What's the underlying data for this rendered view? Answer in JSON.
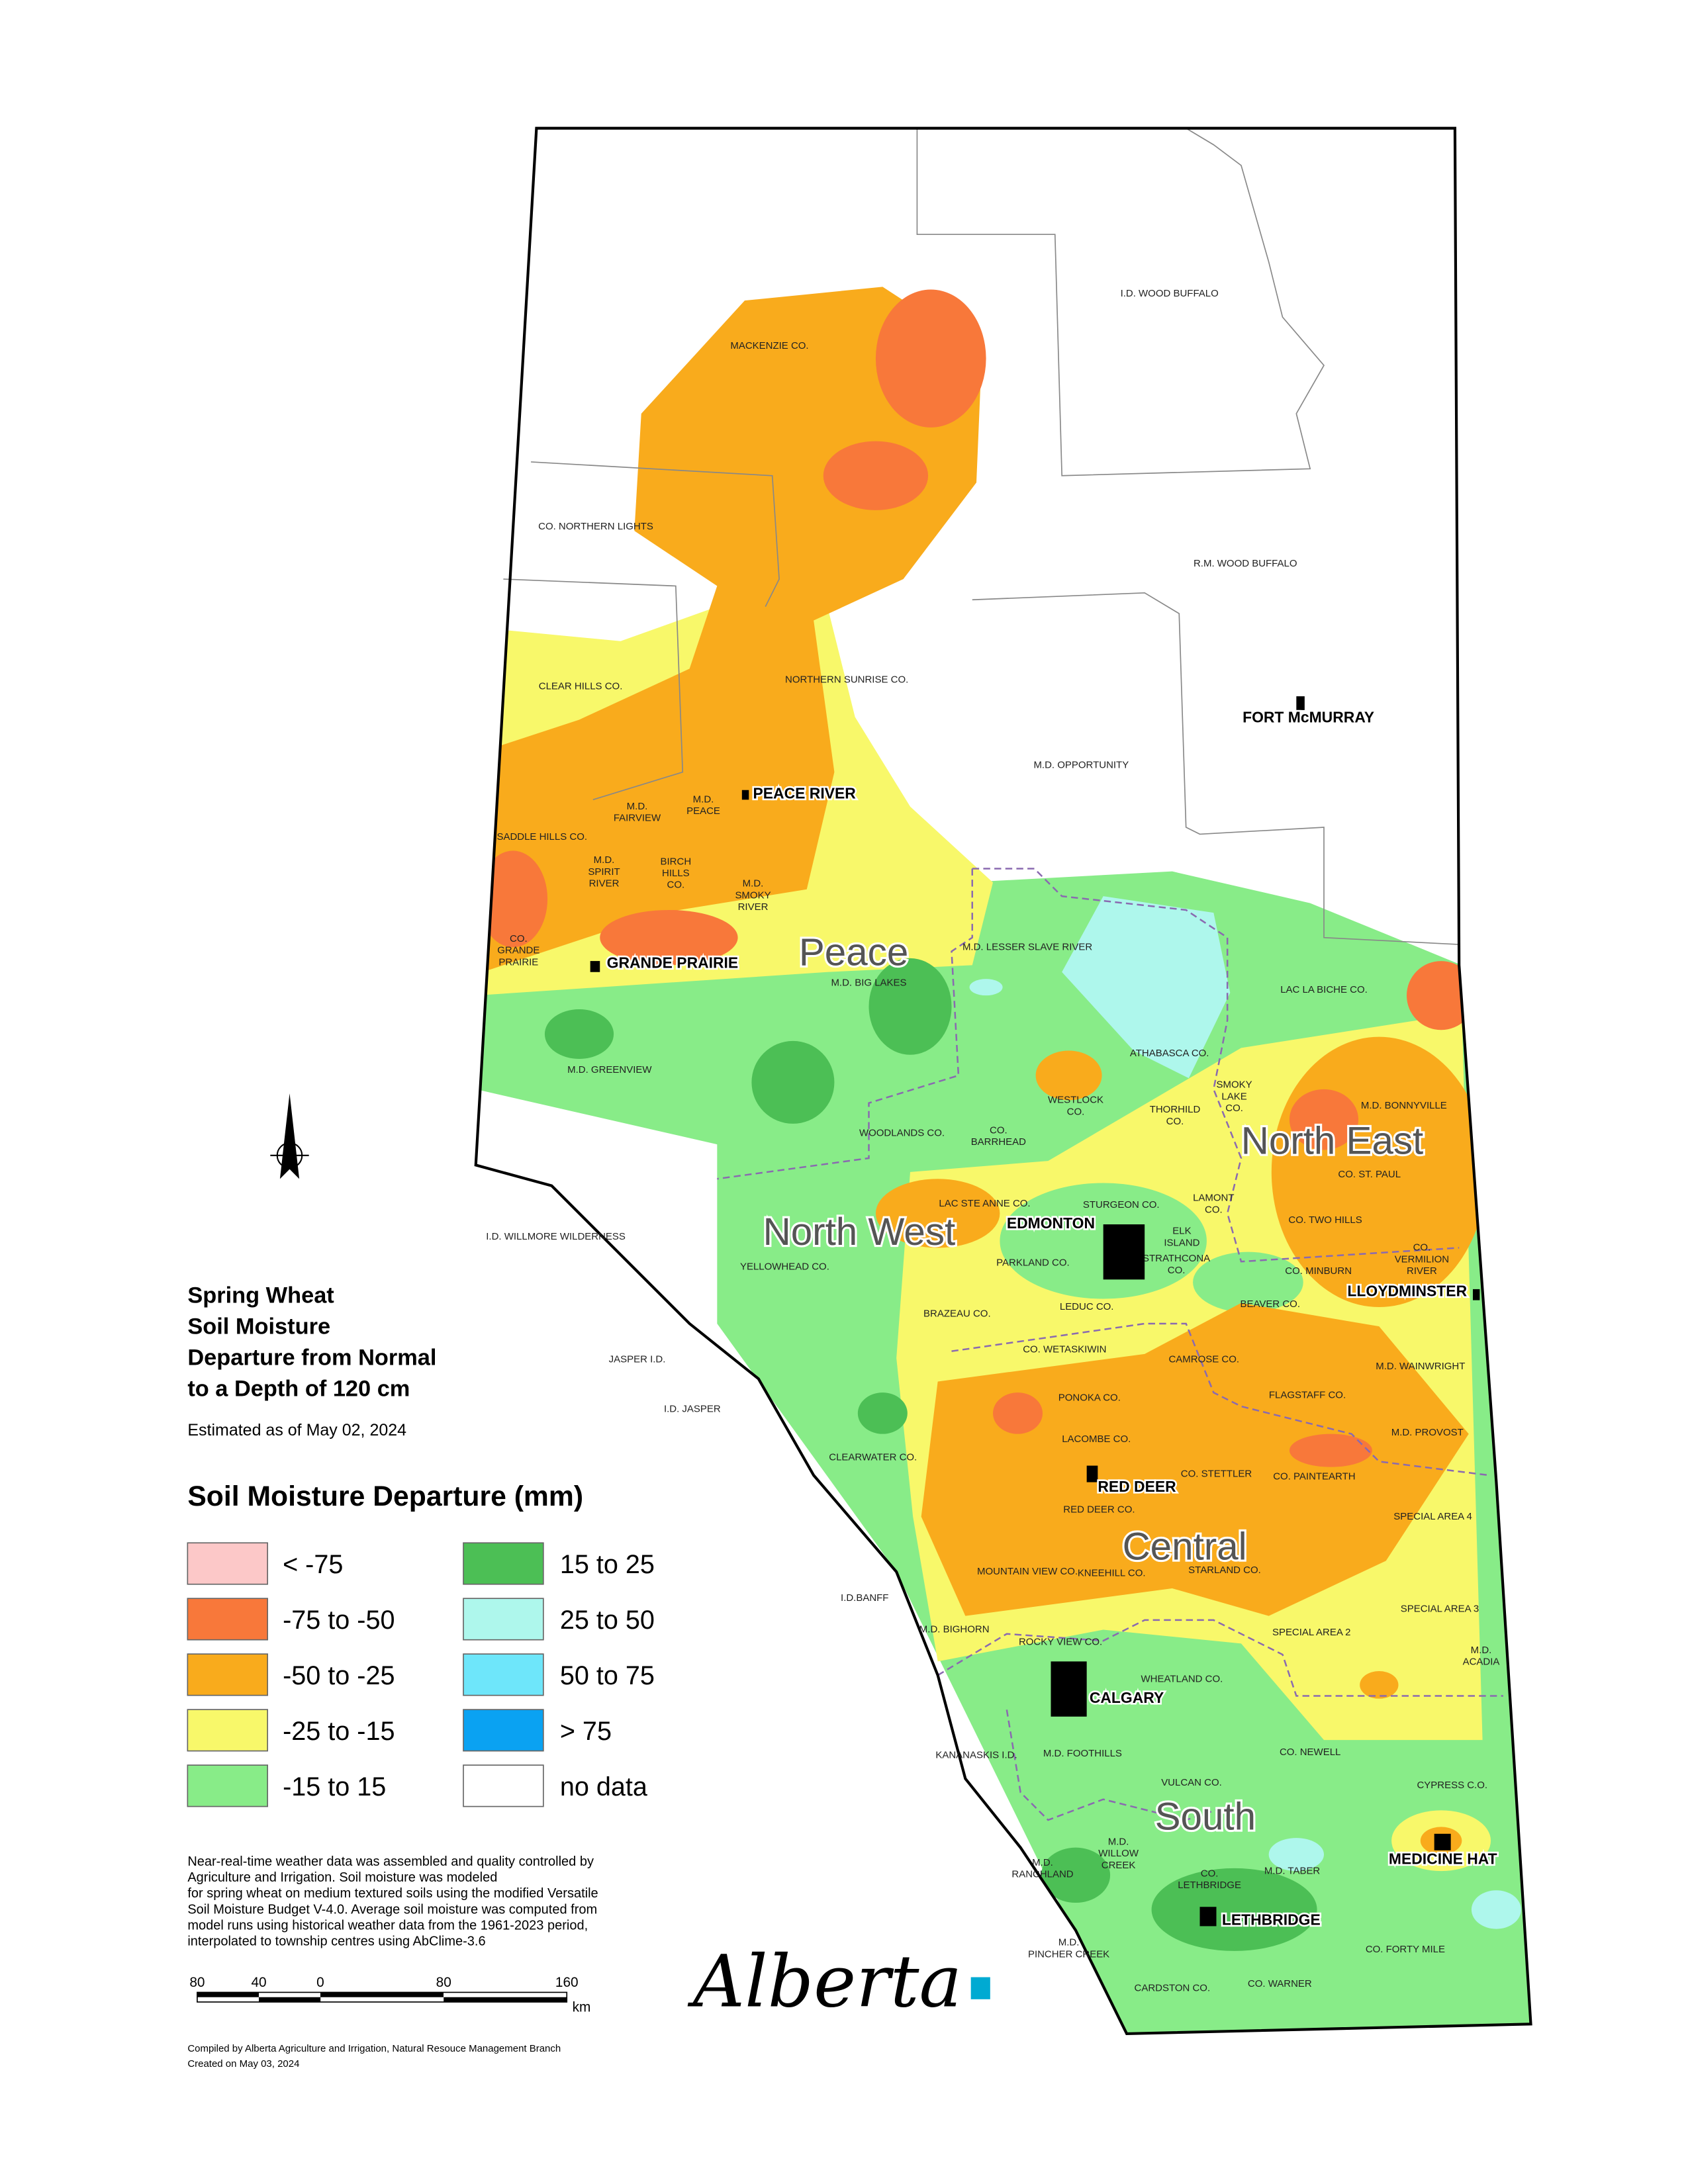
{
  "title": [
    "Spring Wheat",
    "Soil Moisture",
    "Departure from Normal",
    "to a Depth of 120 cm"
  ],
  "estimated": "Estimated as of May 02, 2024",
  "legend": {
    "title": "Soil Moisture Departure (mm)",
    "items": [
      {
        "label": "< -75",
        "color": "#fcc8c8"
      },
      {
        "label": "-75 to -50",
        "color": "#f8783a"
      },
      {
        "label": "-50 to -25",
        "color": "#f9ab1c"
      },
      {
        "label": "-25 to -15",
        "color": "#f8f86a"
      },
      {
        "label": "-15 to 15",
        "color": "#88ec88"
      },
      {
        "label": "15 to 25",
        "color": "#4cbf55"
      },
      {
        "label": "25 to 50",
        "color": "#aef7ec"
      },
      {
        "label": "50 to 75",
        "color": "#6ee6fa"
      },
      {
        "label": "> 75",
        "color": "#0aa2f2"
      },
      {
        "label": "no data",
        "color": "#ffffff"
      }
    ]
  },
  "notes": [
    "Near-real-time weather data was assembled and quality controlled by",
    "Agriculture and Irrigation.  Soil moisture was modeled",
    "for spring wheat on medium textured soils using the modified Versatile",
    "Soil Moisture Budget V-4.0.  Average soil moisture was computed from",
    "model runs using historical weather data from the 1961-2023 period,",
    "interpolated to township centres using AbClime-3.6"
  ],
  "scale_bar": {
    "ticks": [
      "80",
      "40",
      "0",
      "80",
      "160"
    ],
    "unit": "km"
  },
  "credits": [
    "Compiled by Alberta Agriculture and Irrigation, Natural Resouce Management Branch",
    "Created on May 03, 2024"
  ],
  "logo": "Alberta",
  "north_arrow": "N",
  "regions": [
    "Peace",
    "North West",
    "North East",
    "Central",
    "South"
  ],
  "cities": [
    "PEACE RIVER",
    "GRANDE PRAIRIE",
    "FORT McMURRAY",
    "EDMONTON",
    "LLOYDMINSTER",
    "RED DEER",
    "CALGARY",
    "MEDICINE HAT",
    "LETHBRIDGE"
  ],
  "municipalities": [
    [
      "MACKENZIE CO."
    ],
    [
      "CO. NORTHERN LIGHTS"
    ],
    [
      "CLEAR HILLS CO."
    ],
    [
      "NORTHERN SUNRISE CO."
    ],
    [
      "M.D.",
      "FAIRVIEW"
    ],
    [
      "M.D.",
      "PEACE"
    ],
    [
      "SADDLE HILLS CO."
    ],
    [
      "M.D.",
      "SPIRIT",
      "RIVER"
    ],
    [
      "BIRCH",
      "HILLS",
      "CO."
    ],
    [
      "M.D.",
      "SMOKY",
      "RIVER"
    ],
    [
      "CO.",
      "GRANDE",
      "PRAIRIE"
    ],
    [
      "I.D. WOOD BUFFALO"
    ],
    [
      "R.M. WOOD BUFFALO"
    ],
    [
      "M.D. OPPORTUNITY"
    ],
    [
      "M.D. LESSER SLAVE RIVER"
    ],
    [
      "M.D. BIG LAKES"
    ],
    [
      "LAC LA BICHE CO."
    ],
    [
      "M.D. GREENVIEW"
    ],
    [
      "ATHABASCA CO."
    ],
    [
      "WESTLOCK",
      "CO."
    ],
    [
      "THORHILD",
      "CO."
    ],
    [
      "SMOKY",
      "LAKE",
      "CO."
    ],
    [
      "M.D. BONNYVILLE"
    ],
    [
      "WOODLANDS CO."
    ],
    [
      "CO.",
      "BARRHEAD"
    ],
    [
      "CO.  ST.  PAUL"
    ],
    [
      "LAC STE ANNE CO."
    ],
    [
      "STURGEON CO."
    ],
    [
      "LAMONT",
      "CO."
    ],
    [
      "CO. TWO HILLS"
    ],
    [
      "I.D. WILLMORE WILDERNESS"
    ],
    [
      "ELK",
      "ISLAND"
    ],
    [
      "STRATHCONA",
      "CO."
    ],
    [
      "CO.",
      "VERMILION",
      "RIVER"
    ],
    [
      "PARKLAND CO."
    ],
    [
      "CO. MINBURN"
    ],
    [
      "YELLOWHEAD CO."
    ],
    [
      "BEAVER CO."
    ],
    [
      "LEDUC CO."
    ],
    [
      "BRAZEAU CO."
    ],
    [
      "CO. WETASKIWIN"
    ],
    [
      "CAMROSE CO."
    ],
    [
      "JASPER I.D."
    ],
    [
      "M.D. WAINWRIGHT"
    ],
    [
      "FLAGSTAFF CO."
    ],
    [
      "I.D. JASPER"
    ],
    [
      "PONOKA CO."
    ],
    [
      "M.D. PROVOST"
    ],
    [
      "LACOMBE CO."
    ],
    [
      "CLEARWATER CO."
    ],
    [
      "CO. STETTLER"
    ],
    [
      "CO. PAINTEARTH"
    ],
    [
      "RED DEER CO."
    ],
    [
      "SPECIAL AREA 4"
    ],
    [
      "MOUNTAIN VIEW CO."
    ],
    [
      "KNEEHILL CO."
    ],
    [
      "STARLAND CO."
    ],
    [
      "I.D.BANFF"
    ],
    [
      "SPECIAL AREA 3"
    ],
    [
      "M.D. BIGHORN"
    ],
    [
      "SPECIAL AREA 2"
    ],
    [
      "ROCKY VIEW CO."
    ],
    [
      "M.D.",
      "ACADIA"
    ],
    [
      "WHEATLAND CO."
    ],
    [
      "KANANASKIS I.D."
    ],
    [
      "M.D. FOOTHILLS"
    ],
    [
      "CO. NEWELL"
    ],
    [
      "VULCAN CO."
    ],
    [
      "CYPRESS C.O."
    ],
    [
      "M.D.",
      "WILLOW",
      "CREEK"
    ],
    [
      "M.D.",
      "RANCHLAND"
    ],
    [
      "CO.",
      "LETHBRIDGE"
    ],
    [
      "M.D. TABER"
    ],
    [
      "CO. FORTY MILE"
    ],
    [
      "M.D.",
      "PINCHER CREEK"
    ],
    [
      "CARDSTON CO."
    ],
    [
      "CO. WARNER"
    ]
  ]
}
